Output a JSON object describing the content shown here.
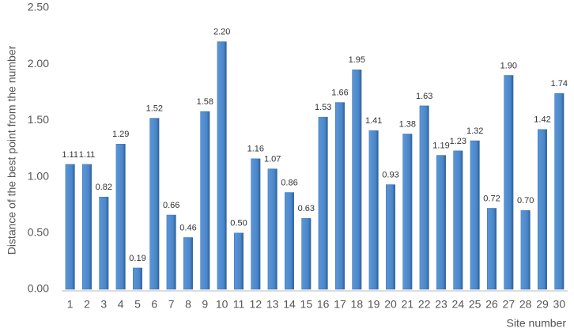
{
  "chart_data": {
    "type": "bar",
    "x_label": "Site number",
    "y_label": "Distance of the best point from the number",
    "categories": [
      "1",
      "2",
      "3",
      "4",
      "5",
      "6",
      "7",
      "8",
      "9",
      "10",
      "11",
      "12",
      "13",
      "14",
      "15",
      "16",
      "17",
      "18",
      "19",
      "20",
      "21",
      "22",
      "23",
      "24",
      "25",
      "26",
      "27",
      "28",
      "29",
      "30"
    ],
    "values": [
      1.11,
      1.11,
      0.82,
      1.29,
      0.19,
      1.52,
      0.66,
      0.46,
      1.58,
      2.2,
      0.5,
      1.16,
      1.07,
      0.86,
      0.63,
      1.53,
      1.66,
      1.95,
      1.41,
      0.93,
      1.38,
      1.63,
      1.19,
      1.23,
      1.32,
      0.72,
      1.9,
      0.7,
      1.42,
      1.74
    ],
    "value_labels": [
      "1.11",
      "1.11",
      "0.82",
      "1.29",
      "0.19",
      "1.52",
      "0.66",
      "0.46",
      "1.58",
      "2.20",
      "0.50",
      "1.16",
      "1.07",
      "0.86",
      "0.63",
      "1.53",
      "1.66",
      "1.95",
      "1.41",
      "0.93",
      "1.38",
      "1.63",
      "1.19",
      "1.23",
      "1.32",
      "0.72",
      "1.90",
      "0.70",
      "1.42",
      "1.74"
    ],
    "color": "#4a86c8",
    "ylim": [
      0,
      2.5
    ],
    "yticks": [
      {
        "value": 0,
        "label": "0.00"
      },
      {
        "value": 0.5,
        "label": "0.50"
      },
      {
        "value": 1,
        "label": "1.00"
      },
      {
        "value": 1.5,
        "label": "1.50"
      },
      {
        "value": 2,
        "label": "2.00"
      },
      {
        "value": 2.5,
        "label": "2.50"
      }
    ],
    "grid": false
  }
}
